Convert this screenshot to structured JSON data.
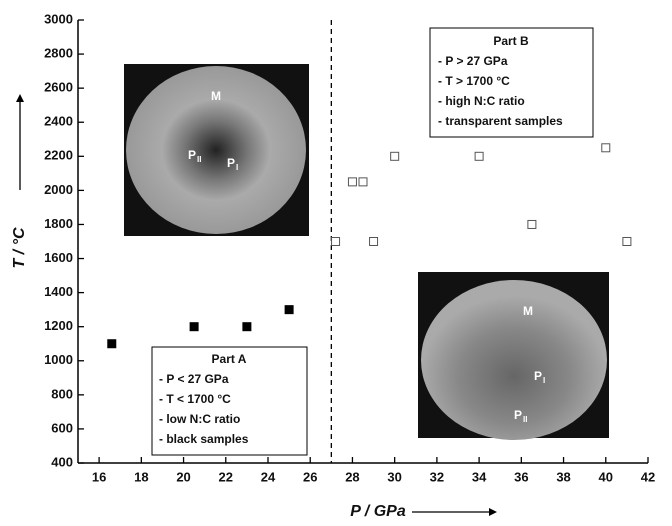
{
  "chart_data": {
    "type": "scatter",
    "xlabel": "P / GPa",
    "ylabel": "T / °C",
    "xlim": [
      15,
      42
    ],
    "xticks": [
      16,
      18,
      20,
      22,
      24,
      26,
      28,
      30,
      32,
      34,
      36,
      38,
      40,
      42
    ],
    "ylim": [
      400,
      3000
    ],
    "yticks": [
      400,
      600,
      800,
      1000,
      1200,
      1400,
      1600,
      1800,
      2000,
      2200,
      2400,
      2600,
      2800,
      3000
    ],
    "divider_x": 27,
    "series": [
      {
        "marker": "filled",
        "color": "#000000",
        "x": [
          16.6,
          20.5,
          23,
          25
        ],
        "values": [
          1100,
          1200,
          1200,
          1300
        ]
      },
      {
        "marker": "open",
        "color": "#555555",
        "x": [
          27.2,
          28,
          28.5,
          29,
          30,
          34,
          36.5,
          40,
          41
        ],
        "values": [
          1700,
          2050,
          2050,
          1700,
          2200,
          2200,
          1800,
          2250,
          1700
        ]
      }
    ],
    "annotations": [
      {
        "title": "Part A",
        "lines": [
          "- P < 27 GPa",
          "- T < 1700 °C",
          "- low N:C ratio",
          "- black samples"
        ]
      },
      {
        "title": "Part B",
        "lines": [
          "- P > 27 GPa",
          "- T > 1700 °C",
          "- high N:C ratio",
          "- transparent samples"
        ]
      }
    ],
    "insets": [
      {
        "labels": [
          {
            "text": "M"
          },
          {
            "text": "P",
            "sub": "II"
          },
          {
            "text": "P",
            "sub": "I"
          }
        ]
      },
      {
        "labels": [
          {
            "text": "M"
          },
          {
            "text": "P",
            "sub": "I"
          },
          {
            "text": "P",
            "sub": "II"
          }
        ]
      }
    ]
  }
}
